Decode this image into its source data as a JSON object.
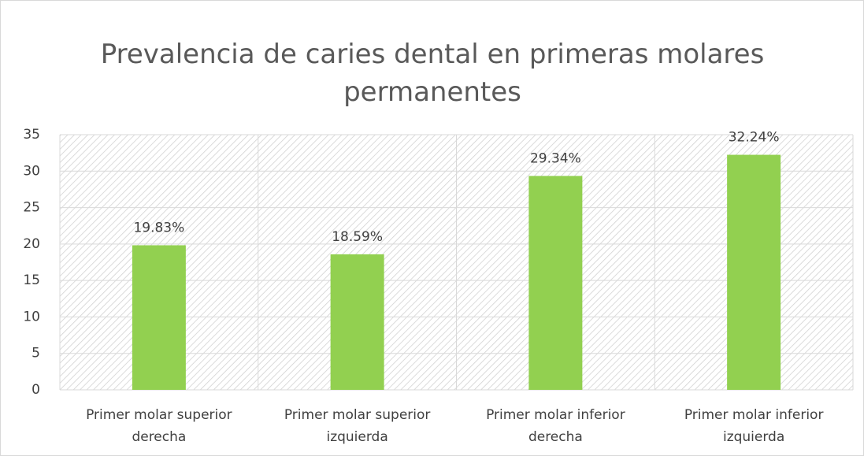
{
  "chart_data": {
    "type": "bar",
    "title": "Prevalencia de caries dental en primeras molares permanentes",
    "categories": [
      "Primer molar superior derecha",
      "Primer molar superior izquierda",
      "Primer molar inferior derecha",
      "Primer molar inferior izquierda"
    ],
    "values": [
      19.83,
      18.59,
      29.34,
      32.24
    ],
    "value_labels": [
      "19.83%",
      "18.59%",
      "29.34%",
      "32.24%"
    ],
    "color": "#92d050",
    "ylim": [
      0,
      35
    ],
    "yticks": [
      0,
      5,
      10,
      15,
      20,
      25,
      30,
      35
    ],
    "grid": true
  }
}
